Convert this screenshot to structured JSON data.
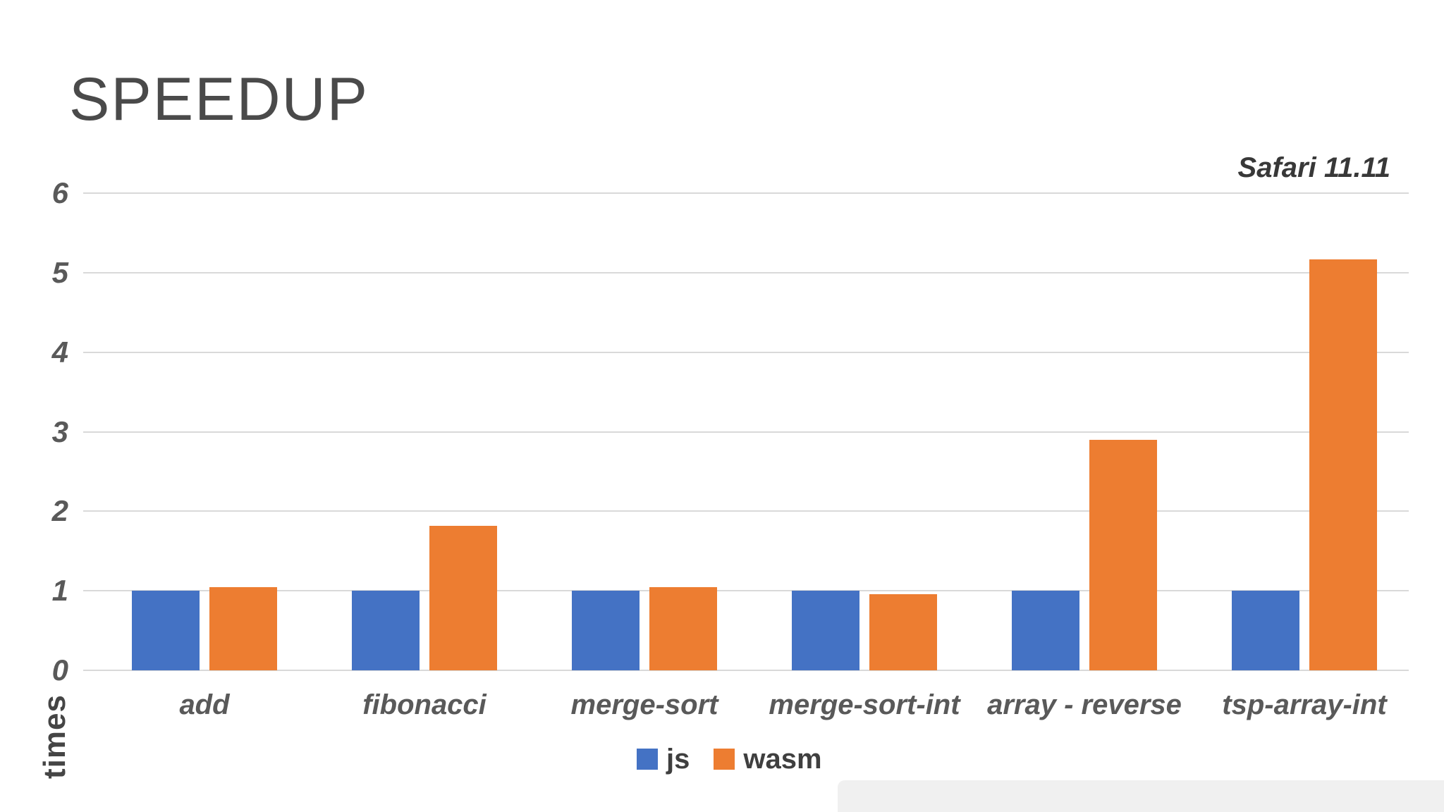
{
  "title": "SPEEDUP",
  "annotation": "Safari 11.11",
  "y_axis": {
    "label": "times",
    "tick_values": [
      0,
      1,
      2,
      3,
      4,
      5,
      6
    ]
  },
  "legend": {
    "items": [
      "js",
      "wasm"
    ],
    "position": "bottom-center"
  },
  "colors": {
    "js": "#4472C4",
    "wasm": "#ED7D31",
    "gridline": "#d9d9d9",
    "axis_text": "#595959",
    "title_text": "#4a4a4a"
  },
  "chart_data": {
    "type": "bar",
    "title": "SPEEDUP",
    "annotation": "Safari 11.11",
    "categories": [
      "add",
      "fibonacci",
      "merge-sort",
      "merge-sort-int",
      "array - reverse",
      "tsp-array-int"
    ],
    "series": [
      {
        "name": "js",
        "color": "#4472C4",
        "values": [
          1.0,
          1.0,
          1.0,
          1.0,
          1.0,
          1.0
        ]
      },
      {
        "name": "wasm",
        "color": "#ED7D31",
        "values": [
          1.05,
          1.82,
          1.05,
          0.96,
          2.9,
          5.17
        ]
      }
    ],
    "xlabel": "",
    "ylabel": "times",
    "ylim": [
      0,
      6
    ],
    "ytick_step": 1,
    "grid": true,
    "legend_position": "bottom"
  }
}
